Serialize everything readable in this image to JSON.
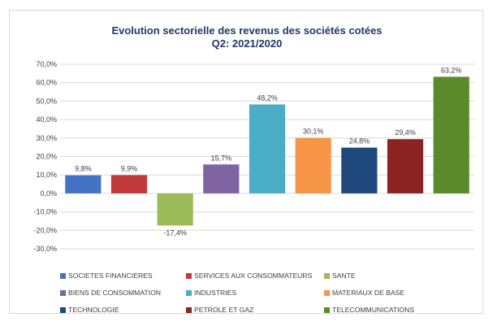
{
  "chart_data": {
    "type": "bar",
    "title_line1": "Evolution sectorielle des revenus des sociétés cotées",
    "title_line2": "Q2: 2021/2020",
    "ylim": [
      -30,
      70
    ],
    "yticks": [
      -30,
      -20,
      -10,
      0,
      10,
      20,
      30,
      40,
      50,
      60,
      70
    ],
    "ytick_labels": [
      "-30,0%",
      "-20,0%",
      "-10,0%",
      "0,0%",
      "10,0%",
      "20,0%",
      "30,0%",
      "40,0%",
      "50,0%",
      "60,0%",
      "70,0%"
    ],
    "grid": true,
    "legend_position": "bottom",
    "categories": [
      "SOCIETES FINANCIERES",
      "SERVICES AUX CONSOMMATEURS",
      "SANTE",
      "BIENS DE CONSOMMATION",
      "INDUSTRIES",
      "MATERIAUX DE BASE",
      "TECHNOLOGIE",
      "PETROLE ET GAZ",
      "TELECOMMUNICATIONS"
    ],
    "values": [
      9.8,
      9.9,
      -17.4,
      15.7,
      48.2,
      30.1,
      24.8,
      29.4,
      63.2
    ],
    "value_labels": [
      "9,8%",
      "9,9%",
      "-17,4%",
      "15,7%",
      "48,2%",
      "30,1%",
      "24,8%",
      "29,4%",
      "63,2%"
    ],
    "colors": [
      "#4472c4",
      "#c0393b",
      "#9bbb59",
      "#8064a2",
      "#4bacc6",
      "#f79646",
      "#1f497d",
      "#8b2323",
      "#5b8a2b"
    ]
  }
}
